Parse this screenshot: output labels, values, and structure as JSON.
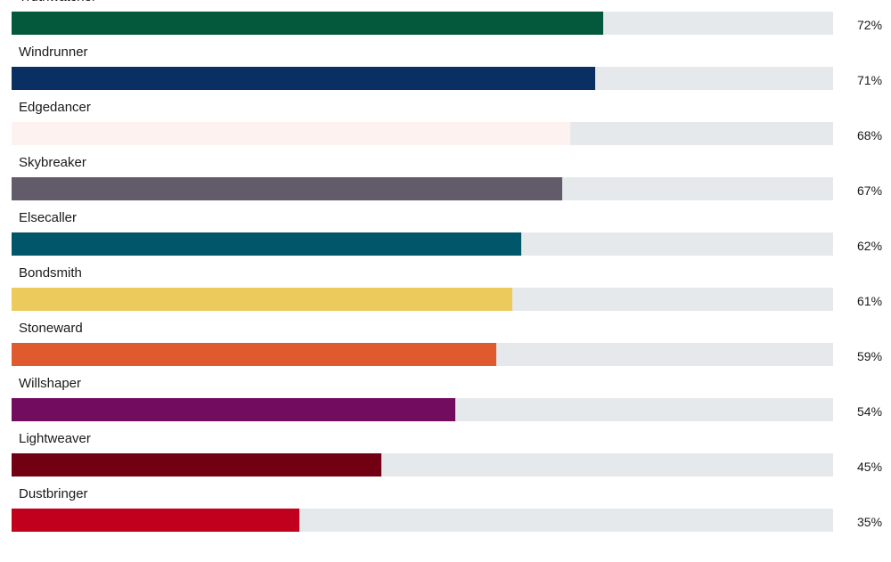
{
  "chart_data": {
    "type": "bar",
    "orientation": "horizontal",
    "title": "",
    "xlabel": "",
    "ylabel": "",
    "xlim": [
      0,
      100
    ],
    "grid": false,
    "categories": [
      "Truthwatcher",
      "Windrunner",
      "Edgedancer",
      "Skybreaker",
      "Elsecaller",
      "Bondsmith",
      "Stoneward",
      "Willshaper",
      "Lightweaver",
      "Dustbringer"
    ],
    "values": [
      72,
      71,
      68,
      67,
      62,
      61,
      59,
      54,
      45,
      35
    ],
    "value_labels": [
      "72%",
      "71%",
      "68%",
      "67%",
      "62%",
      "61%",
      "59%",
      "54%",
      "45%",
      "35%"
    ],
    "colors": [
      "#04583c",
      "#0a2f63",
      "#fdf2ef",
      "#615b6a",
      "#02566a",
      "#ecca5c",
      "#df5b2f",
      "#720c5f",
      "#710012",
      "#c0001c"
    ],
    "track_color": "#e6e9ec"
  }
}
